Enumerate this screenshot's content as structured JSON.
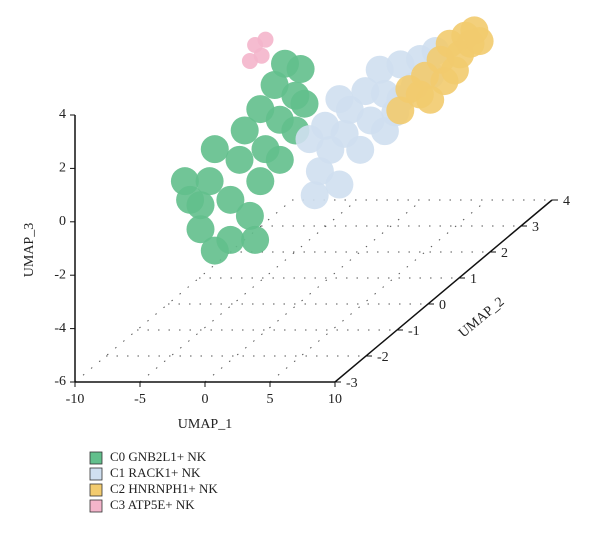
{
  "chart_data": {
    "type": "scatter3d",
    "x_label": "UMAP_1",
    "y_label": "UMAP_2",
    "z_label": "UMAP_3",
    "xlim": [
      -10,
      10
    ],
    "xticks": [
      -10,
      -5,
      0,
      5,
      10
    ],
    "ylim": [
      -3,
      4
    ],
    "yticks": [
      -3,
      -2,
      -1,
      0,
      1,
      2,
      3,
      4
    ],
    "zlim": [
      -6,
      4
    ],
    "zticks": [
      -6,
      -4,
      -2,
      0,
      2,
      4
    ],
    "floor_grid": true,
    "series": [
      {
        "name": "C0 GNB2L1+ NK",
        "color": "#62bf8c",
        "x": [
          -8.3,
          -7.5,
          -6.4,
          -5.2,
          -8.7,
          -6.8,
          -5.2,
          -3.7,
          -3.3,
          -6.4,
          -4.5,
          -2.9,
          -4.1,
          -2.5,
          -1.4,
          -2.9,
          -1.4,
          -0.2,
          -1.8,
          -0.2,
          -1.0,
          0.2,
          0.5,
          -7.5
        ],
        "y": [
          0,
          0,
          0,
          0,
          0,
          0,
          0,
          0,
          0,
          0,
          0,
          0,
          0,
          0,
          0,
          0,
          0,
          0,
          0,
          0,
          0,
          0,
          0,
          0
        ],
        "z": [
          -2.1,
          -3.2,
          -4.0,
          -3.6,
          -1.4,
          -1.4,
          -2.1,
          -2.7,
          -3.6,
          -0.2,
          -0.6,
          -1.4,
          0.5,
          -0.2,
          -0.6,
          1.3,
          0.9,
          0.5,
          2.2,
          1.8,
          3.0,
          2.8,
          1.5,
          -2.3
        ]
      },
      {
        "name": "C1 RACK1+ NK",
        "color": "#cfdff0",
        "x": [
          -1.1,
          -0.7,
          0.1,
          0.8,
          -0.3,
          1.2,
          2.4,
          1.6,
          3.2,
          4.3,
          2.8,
          4.3,
          5.5,
          3.9,
          5.5,
          7.0,
          6.6,
          7.8,
          -1.5,
          0.8,
          8.2,
          5.1
        ],
        "y": [
          1,
          1,
          1,
          1,
          1,
          1,
          1,
          1,
          1,
          1,
          1,
          1,
          1,
          1,
          1,
          1,
          1,
          1,
          1,
          1,
          1,
          1
        ],
        "z": [
          -2.9,
          -2.0,
          -1.2,
          -2.5,
          -0.3,
          -0.6,
          -1.2,
          0.3,
          -0.1,
          -0.5,
          1.0,
          0.9,
          0.7,
          1.8,
          2.0,
          2.2,
          1.2,
          1.6,
          -0.8,
          0.7,
          2.5,
          0.2
        ]
      },
      {
        "name": "C2 HNRNPH1+ NK",
        "color": "#f2cb6e",
        "x": [
          3.1,
          3.8,
          5.0,
          6.2,
          6.9,
          8.1,
          8.8,
          7.7,
          6.5,
          5.4,
          8.5,
          4.6,
          7.3,
          9.2
        ],
        "y": [
          2,
          2,
          2,
          2,
          2,
          2,
          2,
          2,
          2,
          2,
          2,
          2,
          2,
          2
        ],
        "z": [
          -0.7,
          0.1,
          0.6,
          1.2,
          1.8,
          2.1,
          2.3,
          1.4,
          0.4,
          -0.3,
          1.8,
          -0.1,
          0.8,
          1.9
        ]
      },
      {
        "name": "C3 ATP5E+ NK",
        "color": "#f4b5cb",
        "x": [
          -3.3,
          -2.8,
          -3.7,
          -2.5
        ],
        "y": [
          0,
          0,
          0,
          0
        ],
        "z": [
          3.7,
          3.3,
          3.1,
          3.9
        ]
      }
    ]
  }
}
